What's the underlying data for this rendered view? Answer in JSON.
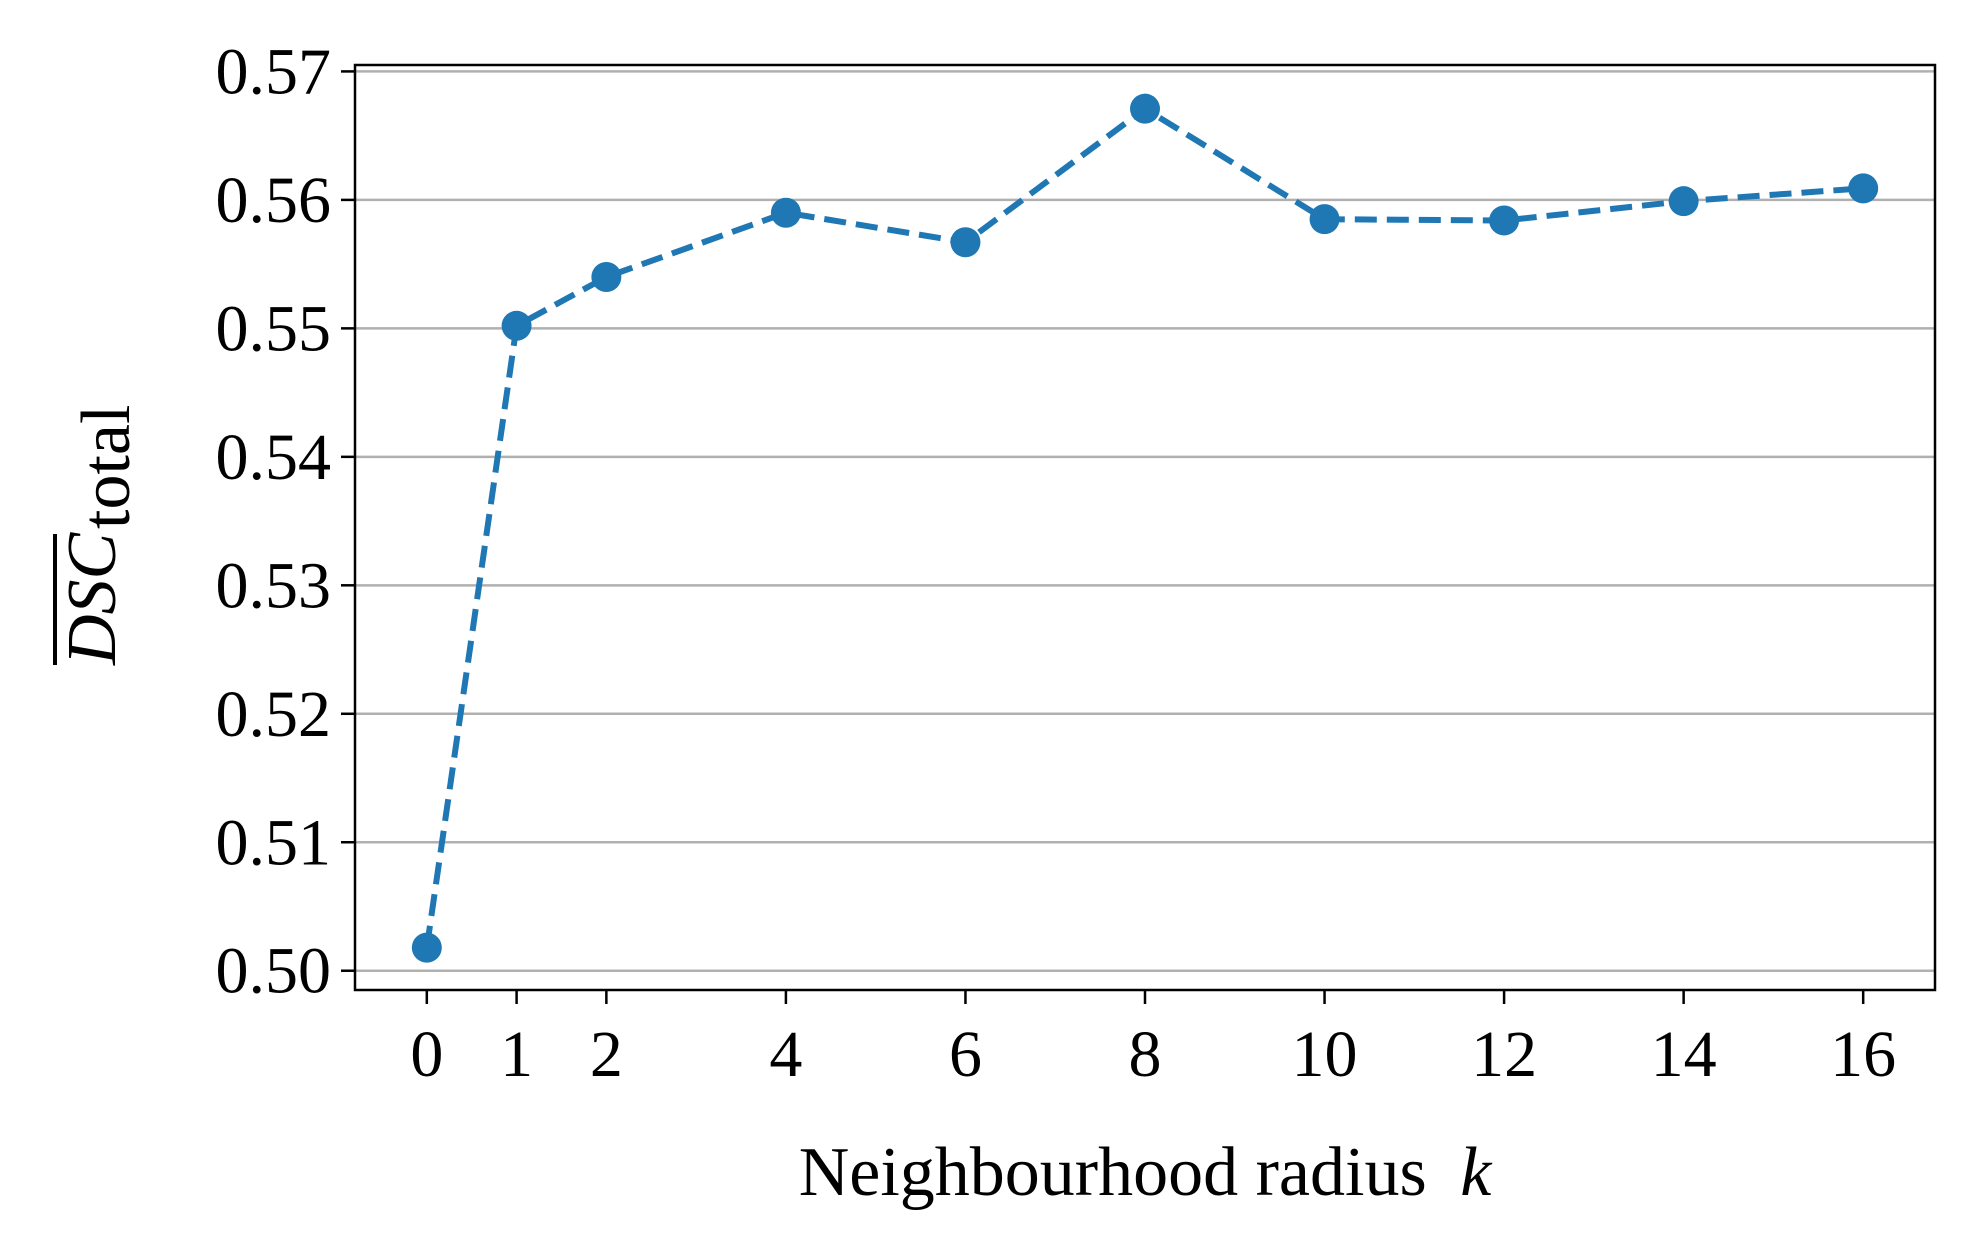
{
  "chart_data": {
    "type": "line",
    "title": "",
    "xlabel": "Neighbourhood radius",
    "xlabel_var": "k",
    "ylabel_main": "DSC",
    "ylabel_sub": "total",
    "x": [
      0,
      1,
      2,
      4,
      6,
      8,
      10,
      12,
      14,
      16
    ],
    "series": [
      {
        "values": [
          0.5018,
          0.5502,
          0.554,
          0.559,
          0.5567,
          0.5671,
          0.5585,
          0.5584,
          0.5599,
          0.5609
        ],
        "color": "#1f77b4",
        "line_style": "dashed",
        "marker": "circle"
      }
    ],
    "xticks": [
      0,
      1,
      2,
      4,
      6,
      8,
      10,
      12,
      14,
      16
    ],
    "xtick_labels": [
      "0",
      "1",
      "2",
      "4",
      "6",
      "8",
      "10",
      "12",
      "14",
      "16"
    ],
    "yticks": [
      0.5,
      0.51,
      0.52,
      0.53,
      0.54,
      0.55,
      0.56,
      0.57
    ],
    "ytick_labels": [
      "0.50",
      "0.51",
      "0.52",
      "0.53",
      "0.54",
      "0.55",
      "0.56",
      "0.57"
    ],
    "xlim": [
      -0.8,
      16.8
    ],
    "ylim": [
      0.4985,
      0.5705
    ],
    "grid": "horizontal",
    "legend": "none"
  }
}
